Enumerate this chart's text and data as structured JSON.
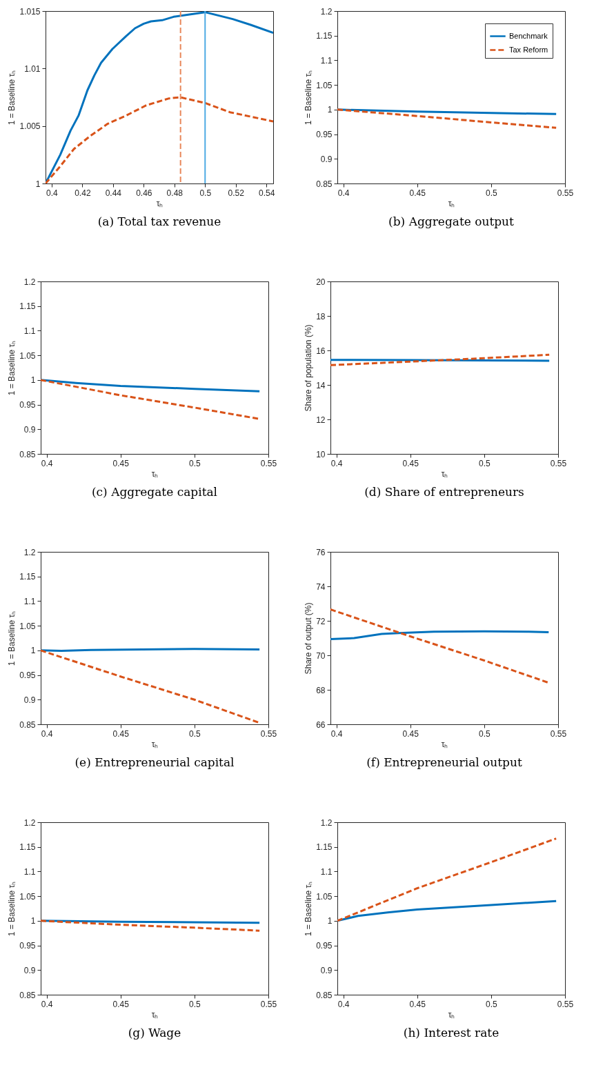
{
  "chart_data": [
    {
      "type": "line",
      "title": "(a) Total tax revenue",
      "xlabel": "τₕ",
      "ylabel": "1 = Baseline τₕ",
      "xlim": [
        0.396,
        0.5444
      ],
      "xticks": [
        0.4,
        0.42,
        0.44,
        0.46,
        0.48,
        0.5,
        0.52,
        0.54
      ],
      "ylim": [
        1,
        1.015
      ],
      "yticks": [
        1,
        1.005,
        1.01,
        1.015
      ],
      "series": [
        {
          "color": "#0072bd",
          "line_style": "solid",
          "x": [
            0.396,
            0.4056,
            0.4123,
            0.4175,
            0.4233,
            0.4278,
            0.4322,
            0.4396,
            0.4484,
            0.4543,
            0.46,
            0.4647,
            0.472,
            0.4795,
            0.4898,
            0.5,
            0.509,
            0.518,
            0.5297,
            0.5444
          ],
          "values": [
            1.0,
            1.0025,
            1.0046,
            1.0059,
            1.0081,
            1.0094,
            1.0105,
            1.0117,
            1.0128,
            1.0135,
            1.0139,
            1.0141,
            1.0142,
            1.0145,
            1.0147,
            1.0149,
            1.0146,
            1.0143,
            1.0138,
            1.0131
          ]
        },
        {
          "color": "#d95319",
          "line_style": "dashed",
          "x": [
            0.396,
            0.4056,
            0.4145,
            0.4248,
            0.4366,
            0.4484,
            0.4617,
            0.4765,
            0.4838,
            0.5,
            0.5162,
            0.5444
          ],
          "values": [
            1.0,
            1.0015,
            1.003,
            1.0041,
            1.0052,
            1.0059,
            1.0068,
            1.0074,
            1.0075,
            1.007,
            1.0062,
            1.0054
          ]
        }
      ],
      "ref_lines": [
        {
          "axis": "x",
          "value": 0.484,
          "color": "#e8875a",
          "line_style": "dashed"
        },
        {
          "axis": "x",
          "value": 0.5,
          "color": "#4dabe3",
          "line_style": "solid"
        }
      ]
    },
    {
      "type": "line",
      "title": "(b) Aggregate output",
      "xlabel": "τₕ",
      "ylabel": "1 = Baseline τₕ",
      "xlim": [
        0.396,
        0.55
      ],
      "xticks": [
        0.4,
        0.45,
        0.5,
        0.55
      ],
      "ylim": [
        0.85,
        1.2
      ],
      "yticks": [
        0.85,
        0.9,
        0.95,
        1,
        1.05,
        1.1,
        1.15,
        1.2
      ],
      "legend": "top right",
      "series": [
        {
          "name": "Benchmark",
          "color": "#0072bd",
          "line_style": "solid",
          "x": [
            0.396,
            0.45,
            0.5,
            0.544
          ],
          "values": [
            1.0,
            0.996,
            0.993,
            0.991
          ]
        },
        {
          "name": "Tax Reform",
          "color": "#d95319",
          "line_style": "dashed",
          "x": [
            0.396,
            0.45,
            0.5,
            0.544
          ],
          "values": [
            1.0,
            0.987,
            0.974,
            0.963
          ]
        }
      ]
    },
    {
      "type": "line",
      "title": "(c) Aggregate capital",
      "xlabel": "τₕ",
      "ylabel": "1 = Baseline τₕ",
      "xlim": [
        0.396,
        0.55
      ],
      "xticks": [
        0.4,
        0.45,
        0.5,
        0.55
      ],
      "ylim": [
        0.85,
        1.2
      ],
      "yticks": [
        0.85,
        0.9,
        0.95,
        1,
        1.05,
        1.1,
        1.15,
        1.2
      ],
      "series": [
        {
          "color": "#0072bd",
          "line_style": "solid",
          "x": [
            0.396,
            0.42,
            0.45,
            0.5,
            0.544
          ],
          "values": [
            1.0,
            0.994,
            0.988,
            0.982,
            0.977
          ]
        },
        {
          "color": "#d95319",
          "line_style": "dashed",
          "x": [
            0.396,
            0.45,
            0.5,
            0.544
          ],
          "values": [
            1.0,
            0.969,
            0.944,
            0.921
          ]
        }
      ]
    },
    {
      "type": "line",
      "title": "(d) Share of entrepreneurs",
      "xlabel": "τₕ",
      "ylabel": "Share of population (%)",
      "xlim": [
        0.396,
        0.55
      ],
      "xticks": [
        0.4,
        0.45,
        0.5,
        0.55
      ],
      "ylim": [
        10,
        20
      ],
      "yticks": [
        10,
        12,
        14,
        16,
        18,
        20
      ],
      "series": [
        {
          "color": "#0072bd",
          "line_style": "solid",
          "x": [
            0.396,
            0.45,
            0.5,
            0.544
          ],
          "values": [
            15.45,
            15.44,
            15.42,
            15.4
          ]
        },
        {
          "color": "#d95319",
          "line_style": "dashed",
          "x": [
            0.396,
            0.45,
            0.5,
            0.544
          ],
          "values": [
            15.15,
            15.35,
            15.55,
            15.75
          ]
        }
      ]
    },
    {
      "type": "line",
      "title": "(e) Entrepreneurial capital",
      "xlabel": "τₕ",
      "ylabel": "1 = Baseline τₕ",
      "xlim": [
        0.396,
        0.55
      ],
      "xticks": [
        0.4,
        0.45,
        0.5,
        0.55
      ],
      "ylim": [
        0.85,
        1.2
      ],
      "yticks": [
        0.85,
        0.9,
        0.95,
        1,
        1.05,
        1.1,
        1.15,
        1.2
      ],
      "series": [
        {
          "color": "#0072bd",
          "line_style": "solid",
          "x": [
            0.396,
            0.41,
            0.43,
            0.5,
            0.544
          ],
          "values": [
            1.0,
            0.999,
            1.001,
            1.003,
            1.002
          ]
        },
        {
          "color": "#d95319",
          "line_style": "dashed",
          "x": [
            0.396,
            0.45,
            0.5,
            0.544
          ],
          "values": [
            1.0,
            0.947,
            0.9,
            0.853
          ]
        }
      ]
    },
    {
      "type": "line",
      "title": "(f) Entrepreneurial output",
      "xlabel": "τₕ",
      "ylabel": "Share of output (%)",
      "xlim": [
        0.396,
        0.55
      ],
      "xticks": [
        0.4,
        0.45,
        0.5,
        0.55
      ],
      "ylim": [
        66,
        76
      ],
      "yticks": [
        66,
        68,
        70,
        72,
        74,
        76
      ],
      "series": [
        {
          "color": "#0072bd",
          "line_style": "solid",
          "x": [
            0.396,
            0.412,
            0.4306,
            0.4448,
            0.466,
            0.5,
            0.53,
            0.5436
          ],
          "values": [
            70.94,
            71.0,
            71.24,
            71.3,
            71.37,
            71.39,
            71.37,
            71.34
          ]
        },
        {
          "color": "#d95319",
          "line_style": "dashed",
          "x": [
            0.396,
            0.45,
            0.5,
            0.5436
          ],
          "values": [
            72.66,
            71.1,
            69.7,
            68.41
          ]
        }
      ]
    },
    {
      "type": "line",
      "title": "(g) Wage",
      "xlabel": "τₕ",
      "ylabel": "1 = Baseline τₕ",
      "xlim": [
        0.396,
        0.55
      ],
      "xticks": [
        0.4,
        0.45,
        0.5,
        0.55
      ],
      "ylim": [
        0.85,
        1.2
      ],
      "yticks": [
        0.85,
        0.9,
        0.95,
        1,
        1.05,
        1.1,
        1.15,
        1.2
      ],
      "series": [
        {
          "color": "#0072bd",
          "line_style": "solid",
          "x": [
            0.396,
            0.45,
            0.5,
            0.544
          ],
          "values": [
            1.0,
            0.998,
            0.997,
            0.996
          ]
        },
        {
          "color": "#d95319",
          "line_style": "dashed",
          "x": [
            0.396,
            0.45,
            0.5,
            0.544
          ],
          "values": [
            1.0,
            0.992,
            0.986,
            0.98
          ]
        }
      ]
    },
    {
      "type": "line",
      "title": "(h) Interest rate",
      "xlabel": "τₕ",
      "ylabel": "1 = Baseline τₕ",
      "xlim": [
        0.396,
        0.55
      ],
      "xticks": [
        0.4,
        0.45,
        0.5,
        0.55
      ],
      "ylim": [
        0.85,
        1.2
      ],
      "yticks": [
        0.85,
        0.9,
        0.95,
        1,
        1.05,
        1.1,
        1.15,
        1.2
      ],
      "series": [
        {
          "color": "#0072bd",
          "line_style": "solid",
          "x": [
            0.396,
            0.41,
            0.43,
            0.45,
            0.5,
            0.544
          ],
          "values": [
            1.0,
            1.01,
            1.017,
            1.023,
            1.032,
            1.04
          ]
        },
        {
          "color": "#d95319",
          "line_style": "dashed",
          "x": [
            0.396,
            0.45,
            0.5,
            0.544
          ],
          "values": [
            1.0,
            1.066,
            1.119,
            1.167
          ]
        }
      ]
    }
  ]
}
